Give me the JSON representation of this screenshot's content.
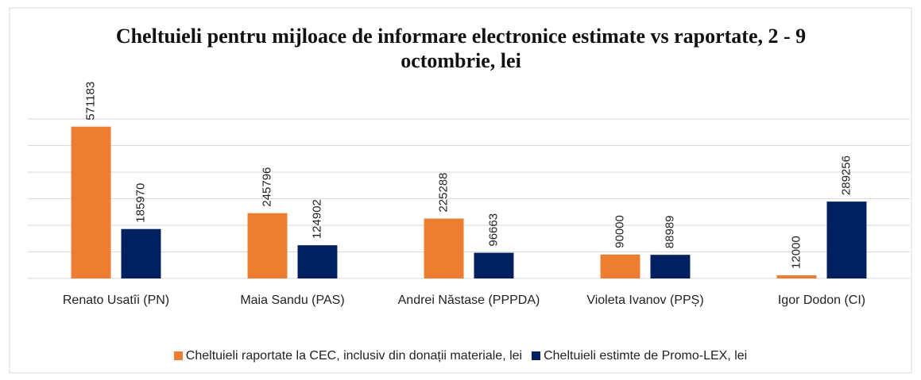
{
  "chart_data": {
    "type": "bar",
    "title": "Cheltuieli pentru mijloace de informare electronice estimate vs raportate, 2 - 9 octombrie, lei",
    "categories": [
      "Renato Usatîi (PN)",
      "Maia Sandu (PAS)",
      "Andrei Năstase (PPPDA)",
      "Violeta Ivanov (PPȘ)",
      "Igor Dodon (CI)"
    ],
    "series": [
      {
        "name": "Cheltuieli raportate la CEC, inclusiv din donații materiale, lei",
        "color": "#ed7d31",
        "values": [
          571183,
          245796,
          225288,
          90000,
          12000
        ]
      },
      {
        "name": "Cheltuieli estimte de Promo-LEX, lei",
        "color": "#002060",
        "values": [
          185970,
          124902,
          96663,
          88989,
          289256
        ]
      }
    ],
    "ylim": [
      0,
      600000
    ],
    "yticks": [
      0,
      100000,
      200000,
      300000,
      400000,
      500000,
      600000
    ],
    "grid": true,
    "legend": "bottom"
  }
}
